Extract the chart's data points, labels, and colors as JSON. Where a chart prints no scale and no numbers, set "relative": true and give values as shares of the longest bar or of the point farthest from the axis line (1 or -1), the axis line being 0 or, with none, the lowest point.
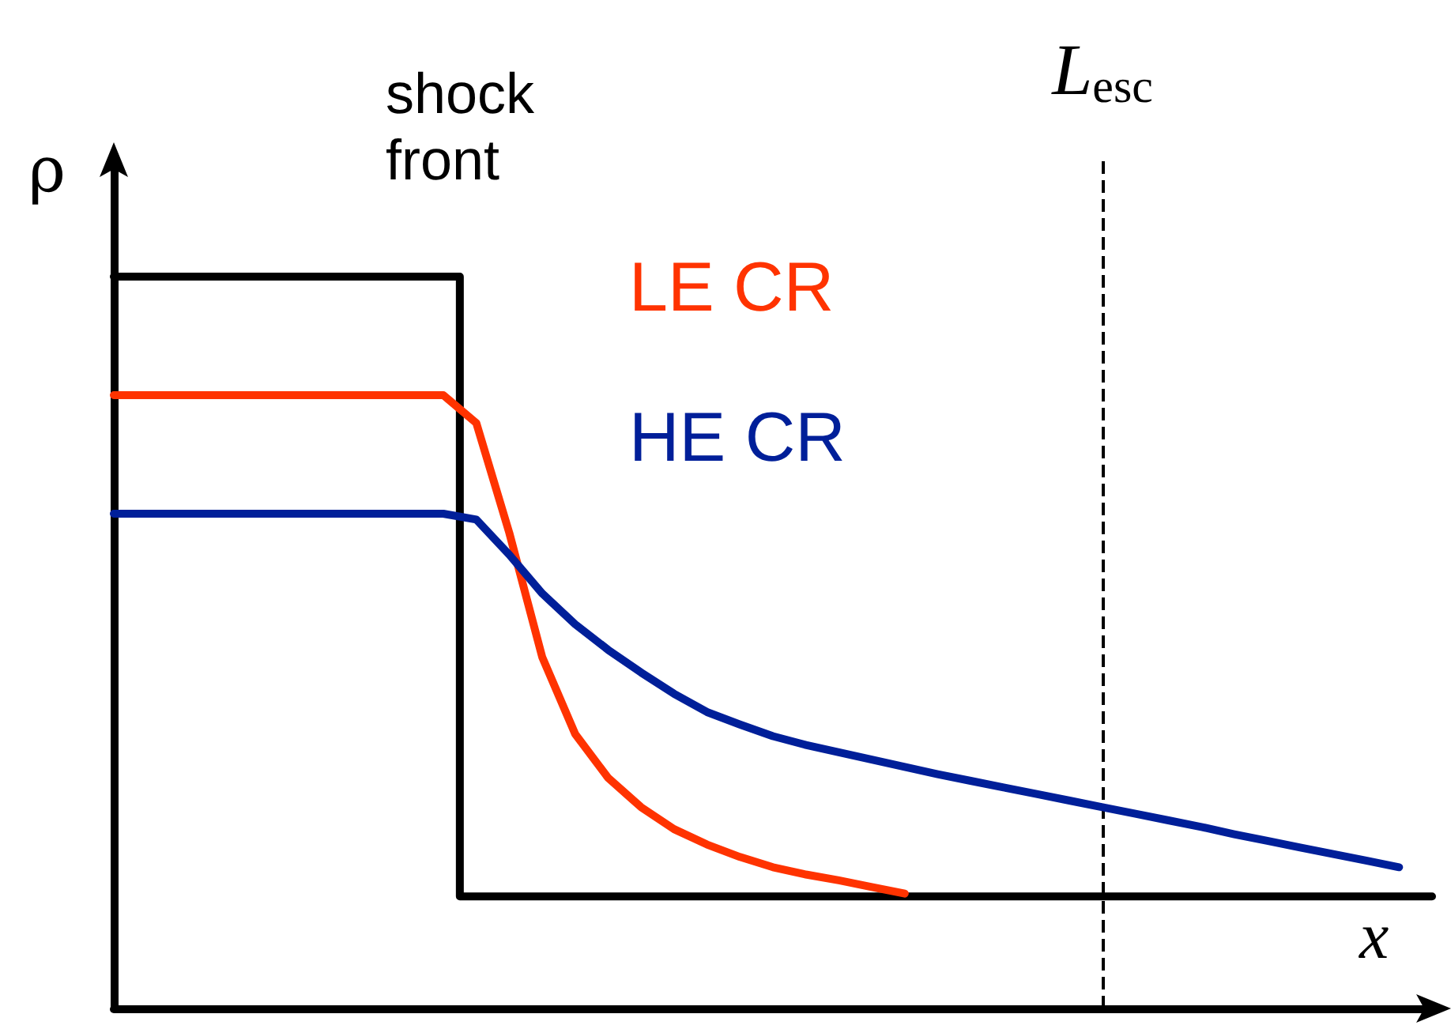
{
  "chart_data": {
    "type": "line",
    "relative": true,
    "xlabel": "x",
    "ylabel": "ρ",
    "annotations": [
      "shock\nfront",
      "L$_{esc}$"
    ],
    "grid": false,
    "legend": false,
    "marker": "none",
    "line_style": "solid",
    "categories": [
      null,
      null,
      null,
      null,
      null,
      null,
      null,
      null,
      null,
      null,
      null,
      null,
      null,
      null,
      null,
      null,
      null,
      null,
      null,
      null,
      null,
      null,
      null,
      null,
      null,
      null,
      null,
      null,
      null,
      null,
      null,
      null,
      null,
      null,
      null,
      null,
      null,
      null,
      null,
      null,
      null
    ],
    "series": [
      {
        "type": "step",
        "color": "#000000",
        "values": [
          1,
          1,
          1,
          1,
          1,
          1,
          1,
          1,
          1,
          1,
          1,
          0.153,
          0.153,
          0.153,
          0.153,
          0.153,
          0.153,
          0.153,
          0.153,
          0.153,
          0.153,
          0.153,
          0.153,
          0.153,
          0.153,
          0.153,
          0.153,
          0.153,
          0.153,
          0.153,
          0.153,
          0.153,
          0.153,
          0.153,
          0.153,
          0.153,
          0.153,
          0.153,
          0.153,
          0.153,
          0.153
        ]
      },
      {
        "name": "LE CR",
        "color": "#ff3300",
        "values": [
          0.838,
          0.838,
          0.838,
          0.838,
          0.838,
          0.838,
          0.838,
          0.838,
          0.838,
          0.838,
          0.838,
          0.8,
          0.65,
          0.48,
          0.375,
          0.315,
          0.275,
          0.245,
          0.224,
          0.207,
          0.193,
          0.183,
          0.175,
          0.166,
          0.157,
          null,
          null,
          null,
          null,
          null,
          null,
          null,
          null,
          null,
          null,
          null,
          null,
          null,
          null,
          null,
          null
        ]
      },
      {
        "name": "HE CR",
        "color": "#001f99",
        "values": [
          0.676,
          0.676,
          0.676,
          0.676,
          0.676,
          0.676,
          0.676,
          0.676,
          0.676,
          0.676,
          0.676,
          0.668,
          0.62,
          0.567,
          0.525,
          0.49,
          0.459,
          0.43,
          0.405,
          0.388,
          0.372,
          0.36,
          0.35,
          0.34,
          0.33,
          0.32,
          0.311,
          0.302,
          0.293,
          0.284,
          0.275,
          0.266,
          0.257,
          0.248,
          0.238,
          0.229,
          0.22,
          0.211,
          0.202,
          0.193,
          null
        ]
      }
    ]
  }
}
